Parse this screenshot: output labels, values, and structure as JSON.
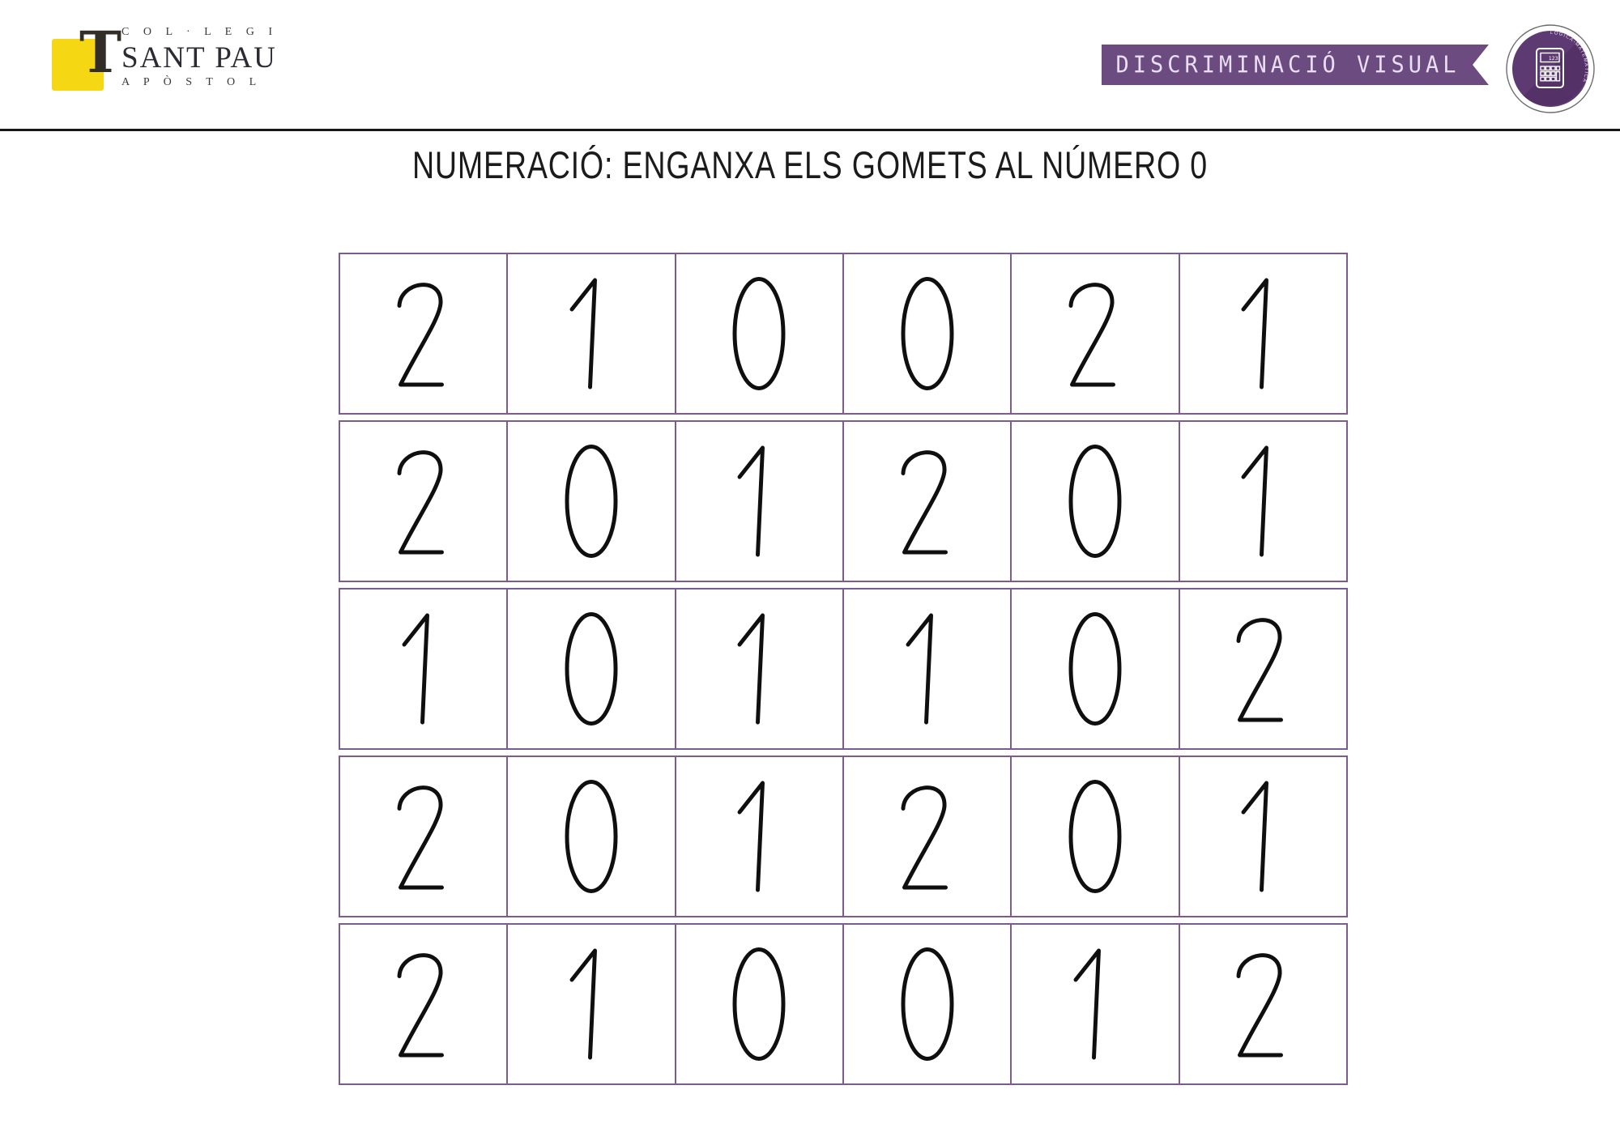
{
  "logo": {
    "line1": "C O L · L E G I",
    "name": "SANT PAU",
    "line3": "A P Ò S T O L",
    "tau_glyph": "T",
    "square_color": "#f6d713"
  },
  "header": {
    "ribbon_label": "DISCRIMINACIÓ VISUAL",
    "ribbon_color": "#6b4b80",
    "badge": {
      "curved_label": "LÒGICA-MATEMÀTICA",
      "calculator_display": "123",
      "circle_color": "#5e3a72",
      "shadow_color": "#543166"
    }
  },
  "title": "NUMERACIÓ: ENGANXA ELS GOMETS AL NÚMERO 0",
  "grid": {
    "border_color": "#7b5c8c",
    "digit_color": "#0f0f0f",
    "rows": [
      [
        2,
        1,
        0,
        0,
        2,
        1
      ],
      [
        2,
        0,
        1,
        2,
        0,
        1
      ],
      [
        1,
        0,
        1,
        1,
        0,
        2
      ],
      [
        2,
        0,
        1,
        2,
        0,
        1
      ],
      [
        2,
        1,
        0,
        0,
        1,
        2
      ]
    ]
  }
}
